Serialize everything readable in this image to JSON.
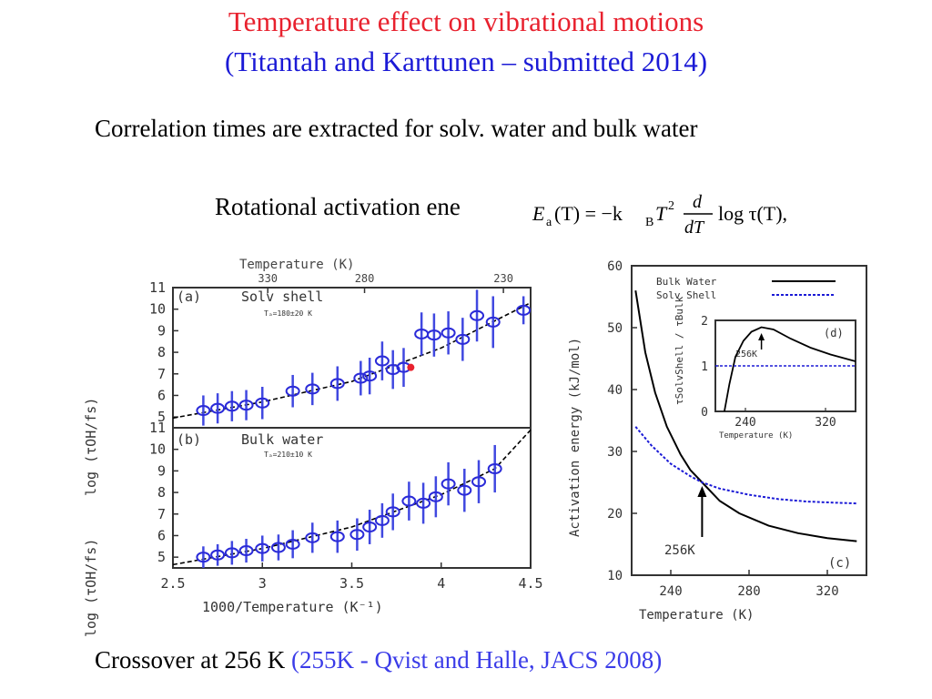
{
  "slide": {
    "title": "Temperature effect on vibrational motions",
    "subtitle": "(Titantah and Karttunen – submitted 2014)",
    "description": "Correlation times are extracted for solv. water and bulk water",
    "rotational_label": "Rotational activation ene",
    "formula": {
      "lhs": "E",
      "lhs_sub": "a",
      "lhs_arg": "(T) = −k",
      "kb_sub": "B",
      "t2": "T",
      "sup2": "2",
      "frac_num": "d",
      "frac_den": "dT",
      "rhs": "log τ(T),"
    },
    "bottom_text": "Crossover at 256 K",
    "bottom_ref": "(255K - Qvist and Halle, JACS 2008)"
  },
  "chart_data": [
    {
      "type": "scatter",
      "panel": "(a)",
      "title": "Solv shell",
      "annotation": "Tₐ=180±20 K",
      "top_axis_label": "Temperature (K)",
      "top_ticks": [
        330,
        280,
        230
      ],
      "ylabel": "log (τOH/fs)",
      "xlim": [
        2.5,
        4.5
      ],
      "ylim": [
        4.5,
        11
      ],
      "yticks": [
        5,
        6,
        7,
        8,
        9,
        10,
        11
      ],
      "highlight_x": 3.83,
      "highlight_y": 7.3,
      "points": [
        {
          "x": 2.67,
          "y": 5.3,
          "err": 0.7
        },
        {
          "x": 2.75,
          "y": 5.4,
          "err": 0.7
        },
        {
          "x": 2.83,
          "y": 5.5,
          "err": 0.7
        },
        {
          "x": 2.91,
          "y": 5.55,
          "err": 0.7
        },
        {
          "x": 3.0,
          "y": 5.65,
          "err": 0.75
        },
        {
          "x": 3.17,
          "y": 6.2,
          "err": 0.75
        },
        {
          "x": 3.28,
          "y": 6.3,
          "err": 0.75
        },
        {
          "x": 3.42,
          "y": 6.55,
          "err": 0.8
        },
        {
          "x": 3.55,
          "y": 6.8,
          "err": 0.8
        },
        {
          "x": 3.6,
          "y": 6.9,
          "err": 0.85
        },
        {
          "x": 3.67,
          "y": 7.6,
          "err": 0.9
        },
        {
          "x": 3.73,
          "y": 7.2,
          "err": 0.9
        },
        {
          "x": 3.79,
          "y": 7.3,
          "err": 0.9
        },
        {
          "x": 3.89,
          "y": 8.85,
          "err": 1.0
        },
        {
          "x": 3.96,
          "y": 8.8,
          "err": 1.0
        },
        {
          "x": 4.04,
          "y": 8.9,
          "err": 1.0
        },
        {
          "x": 4.12,
          "y": 8.6,
          "err": 1.0
        },
        {
          "x": 4.2,
          "y": 9.7,
          "err": 1.2
        },
        {
          "x": 4.29,
          "y": 9.4,
          "err": 1.2
        },
        {
          "x": 4.46,
          "y": 9.95,
          "err": 0.65
        }
      ],
      "fit": [
        [
          2.5,
          4.95
        ],
        [
          3.0,
          5.7
        ],
        [
          3.5,
          6.65
        ],
        [
          4.0,
          8.2
        ],
        [
          4.5,
          10.3
        ]
      ]
    },
    {
      "type": "scatter",
      "panel": "(b)",
      "title": "Bulk water",
      "annotation": "Tₐ=210±10 K",
      "xlabel": "1000/Temperature (K⁻¹)",
      "ylabel": "log (τOH/fs)",
      "xlim": [
        2.5,
        4.5
      ],
      "ylim": [
        4.5,
        11
      ],
      "xticks": [
        "2.5",
        "3",
        "3.5",
        "4",
        "4.5"
      ],
      "yticks": [
        5,
        6,
        7,
        8,
        9,
        10,
        11
      ],
      "points": [
        {
          "x": 2.67,
          "y": 5.0,
          "err": 0.5
        },
        {
          "x": 2.75,
          "y": 5.1,
          "err": 0.5
        },
        {
          "x": 2.83,
          "y": 5.2,
          "err": 0.55
        },
        {
          "x": 2.91,
          "y": 5.3,
          "err": 0.55
        },
        {
          "x": 3.0,
          "y": 5.4,
          "err": 0.6
        },
        {
          "x": 3.09,
          "y": 5.45,
          "err": 0.6
        },
        {
          "x": 3.17,
          "y": 5.6,
          "err": 0.65
        },
        {
          "x": 3.28,
          "y": 5.9,
          "err": 0.7
        },
        {
          "x": 3.42,
          "y": 5.95,
          "err": 0.75
        },
        {
          "x": 3.53,
          "y": 6.05,
          "err": 0.75
        },
        {
          "x": 3.6,
          "y": 6.4,
          "err": 0.8
        },
        {
          "x": 3.67,
          "y": 6.7,
          "err": 0.8
        },
        {
          "x": 3.73,
          "y": 7.1,
          "err": 0.85
        },
        {
          "x": 3.82,
          "y": 7.6,
          "err": 0.9
        },
        {
          "x": 3.9,
          "y": 7.5,
          "err": 0.95
        },
        {
          "x": 3.97,
          "y": 7.8,
          "err": 0.95
        },
        {
          "x": 4.04,
          "y": 8.4,
          "err": 1.0
        },
        {
          "x": 4.13,
          "y": 8.1,
          "err": 1.0
        },
        {
          "x": 4.21,
          "y": 8.5,
          "err": 1.0
        },
        {
          "x": 4.3,
          "y": 9.1,
          "err": 1.1
        }
      ],
      "fit": [
        [
          2.5,
          4.65
        ],
        [
          3.0,
          5.4
        ],
        [
          3.5,
          6.4
        ],
        [
          4.0,
          7.9
        ],
        [
          4.3,
          9.1
        ],
        [
          4.5,
          10.9
        ]
      ]
    },
    {
      "type": "line",
      "panel": "(c)",
      "xlabel": "Temperature (K)",
      "ylabel": "Activation energy (kJ/mol)",
      "xlim": [
        220,
        340
      ],
      "ylim": [
        10,
        60
      ],
      "xticks": [
        240,
        280,
        320
      ],
      "yticks": [
        10,
        20,
        30,
        40,
        50,
        60
      ],
      "legend": [
        "Bulk Water",
        "Solv Shell"
      ],
      "annotation": "256K",
      "arrow_x": 256,
      "series": [
        {
          "name": "Bulk Water",
          "color": "#000000",
          "points": [
            [
              222,
              56
            ],
            [
              227,
              46
            ],
            [
              232,
              39.5
            ],
            [
              238,
              34
            ],
            [
              245,
              29.5
            ],
            [
              250,
              27
            ],
            [
              256,
              25
            ],
            [
              265,
              22
            ],
            [
              275,
              20
            ],
            [
              290,
              18
            ],
            [
              305,
              16.8
            ],
            [
              320,
              16
            ],
            [
              335,
              15.5
            ]
          ]
        },
        {
          "name": "Solv Shell",
          "color": "#1b1ad6",
          "points": [
            [
              222,
              34
            ],
            [
              230,
              31
            ],
            [
              240,
              28
            ],
            [
              250,
              26
            ],
            [
              256,
              25
            ],
            [
              265,
              24
            ],
            [
              280,
              23
            ],
            [
              295,
              22.3
            ],
            [
              310,
              21.9
            ],
            [
              325,
              21.7
            ],
            [
              335,
              21.6
            ]
          ]
        }
      ]
    },
    {
      "type": "line",
      "panel": "(d)",
      "xlabel": "Temperature (K)",
      "ylabel": "τSolvShell / τBulk",
      "xlim": [
        210,
        350
      ],
      "ylim": [
        0,
        2
      ],
      "xticks": [
        240,
        320
      ],
      "yticks": [
        0,
        1,
        2
      ],
      "annotation": "256K",
      "arrow_x": 256,
      "series": [
        {
          "name": "ratio",
          "color": "#000000",
          "points": [
            [
              219,
              0
            ],
            [
              224,
              0.6
            ],
            [
              230,
              1.2
            ],
            [
              238,
              1.55
            ],
            [
              246,
              1.75
            ],
            [
              256,
              1.85
            ],
            [
              268,
              1.8
            ],
            [
              285,
              1.6
            ],
            [
              305,
              1.4
            ],
            [
              325,
              1.25
            ],
            [
              350,
              1.1
            ]
          ]
        },
        {
          "name": "unity",
          "color": "#1b1ad6",
          "points": [
            [
              210,
              1
            ],
            [
              350,
              1
            ]
          ]
        }
      ]
    }
  ]
}
